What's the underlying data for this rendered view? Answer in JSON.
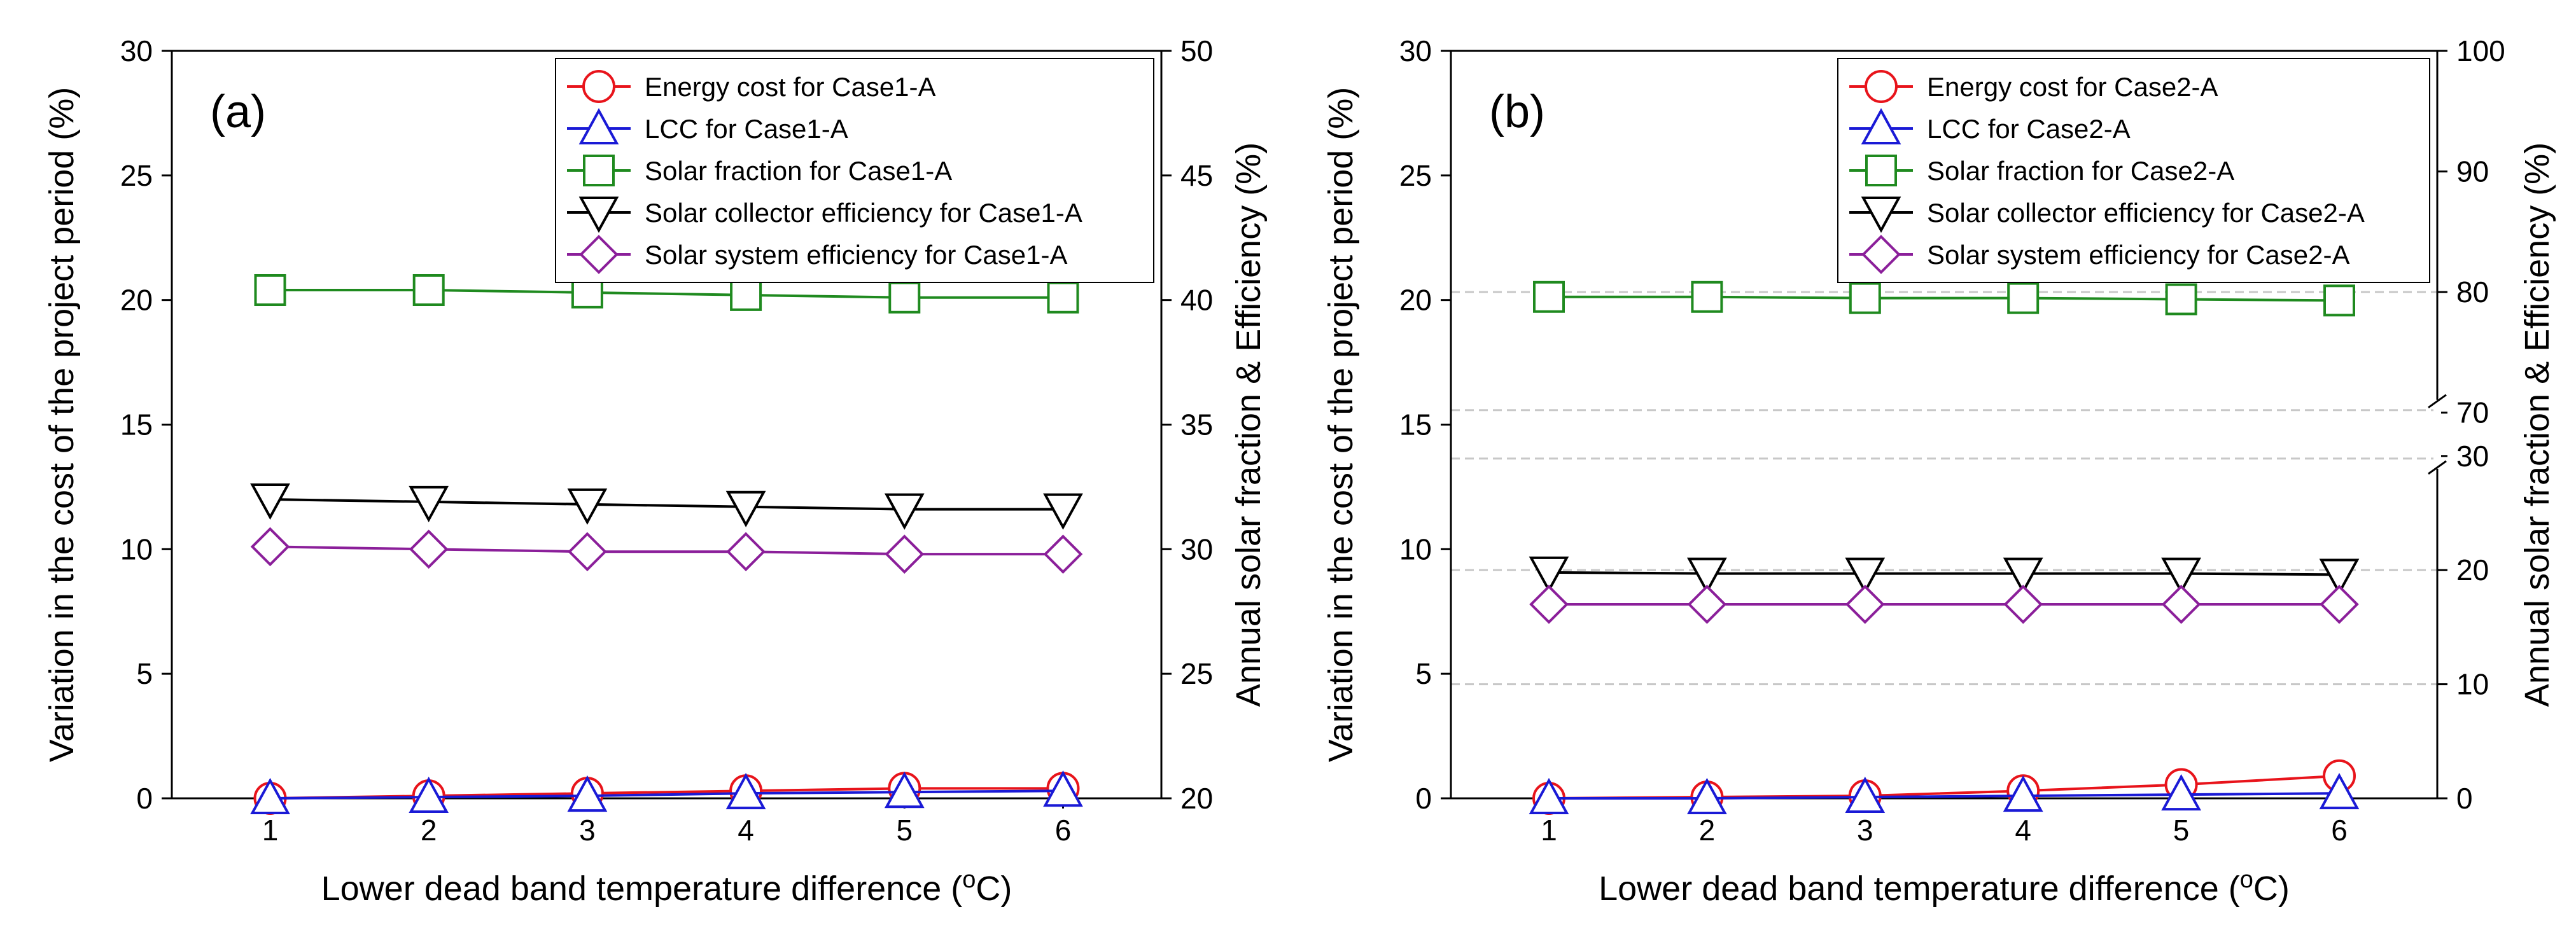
{
  "colors": {
    "energy": "#e8141b",
    "lcc": "#1a1ad6",
    "solar_fraction": "#1f8a1f",
    "collector": "#000000",
    "system": "#8b1f9a",
    "gridline": "#c8c8c8"
  },
  "chart_data": [
    {
      "panel_label": "(a)",
      "type": "line",
      "title": "",
      "xlabel": "Lower dead band temperature difference (",
      "xlabel_sup": "o",
      "xlabel_end": "C)",
      "ylabel": "Variation in the cost of the project period (%)",
      "y2label": "Annual solar fraction & Efficiency (%)",
      "x": [
        1,
        2,
        3,
        4,
        5,
        6
      ],
      "x_ticks": [
        "1",
        "2",
        "3",
        "4",
        "5",
        "6"
      ],
      "ylim": [
        0,
        30
      ],
      "y_ticks": [
        "0",
        "5",
        "10",
        "15",
        "20",
        "25",
        "30"
      ],
      "y2lim": [
        20,
        50
      ],
      "y2_ticks": [
        "20",
        "25",
        "30",
        "35",
        "40",
        "45",
        "50"
      ],
      "broken_axis": false,
      "legend_position": "top-right",
      "series": [
        {
          "key": "energy",
          "name": "Energy cost for Case1-A",
          "marker": "circle",
          "axis": "left",
          "values": [
            0.0,
            0.1,
            0.2,
            0.3,
            0.4,
            0.4
          ]
        },
        {
          "key": "lcc",
          "name": "LCC for Case1-A",
          "marker": "triangle-up",
          "axis": "left",
          "values": [
            0.0,
            0.05,
            0.1,
            0.2,
            0.25,
            0.3
          ]
        },
        {
          "key": "solar_fraction",
          "name": "Solar fraction for Case1-A",
          "marker": "square",
          "axis": "right",
          "values": [
            40.4,
            40.4,
            40.3,
            40.2,
            40.1,
            40.1
          ]
        },
        {
          "key": "collector",
          "name": "Solar collector efficiency for Case1-A",
          "marker": "triangle-down",
          "axis": "right",
          "values": [
            32.0,
            31.9,
            31.8,
            31.7,
            31.6,
            31.6
          ]
        },
        {
          "key": "system",
          "name": "Solar system efficiency for Case1-A",
          "marker": "diamond",
          "axis": "right",
          "values": [
            30.1,
            30.0,
            29.9,
            29.9,
            29.8,
            29.8
          ]
        }
      ]
    },
    {
      "panel_label": "(b)",
      "type": "line",
      "title": "",
      "xlabel": "Lower dead band temperature difference (",
      "xlabel_sup": "o",
      "xlabel_end": "C)",
      "ylabel": "Variation in the cost of the project period (%)",
      "y2label": "Annual solar fraction & Efficiency (%)",
      "x": [
        1,
        2,
        3,
        4,
        5,
        6
      ],
      "x_ticks": [
        "1",
        "2",
        "3",
        "4",
        "5",
        "6"
      ],
      "ylim": [
        0,
        30
      ],
      "y_ticks": [
        "0",
        "5",
        "10",
        "15",
        "20",
        "25",
        "30"
      ],
      "y2lim": [
        0,
        100
      ],
      "y2_ticks_lower": [
        "0",
        "10",
        "20",
        "30"
      ],
      "y2_ticks_upper": [
        "70",
        "80",
        "90",
        "100"
      ],
      "broken_axis": true,
      "legend_position": "top-right",
      "series": [
        {
          "key": "energy",
          "name": "Energy cost for Case2-A",
          "marker": "circle",
          "axis": "left",
          "values": [
            0.0,
            0.05,
            0.1,
            0.3,
            0.55,
            0.9
          ]
        },
        {
          "key": "lcc",
          "name": "LCC for Case2-A",
          "marker": "triangle-up",
          "axis": "left",
          "values": [
            0.0,
            0.0,
            0.05,
            0.1,
            0.15,
            0.2
          ]
        },
        {
          "key": "solar_fraction",
          "name": "Solar fraction for Case2-A",
          "marker": "square",
          "axis": "right",
          "values": [
            79.6,
            79.6,
            79.5,
            79.5,
            79.4,
            79.3
          ]
        },
        {
          "key": "collector",
          "name": "Solar collector efficiency for Case2-A",
          "marker": "triangle-down",
          "axis": "right",
          "values": [
            19.8,
            19.7,
            19.7,
            19.7,
            19.7,
            19.6
          ]
        },
        {
          "key": "system",
          "name": "Solar system efficiency for Case2-A",
          "marker": "diamond",
          "axis": "right",
          "values": [
            17.0,
            17.0,
            17.0,
            17.0,
            17.0,
            17.0
          ]
        }
      ]
    }
  ]
}
